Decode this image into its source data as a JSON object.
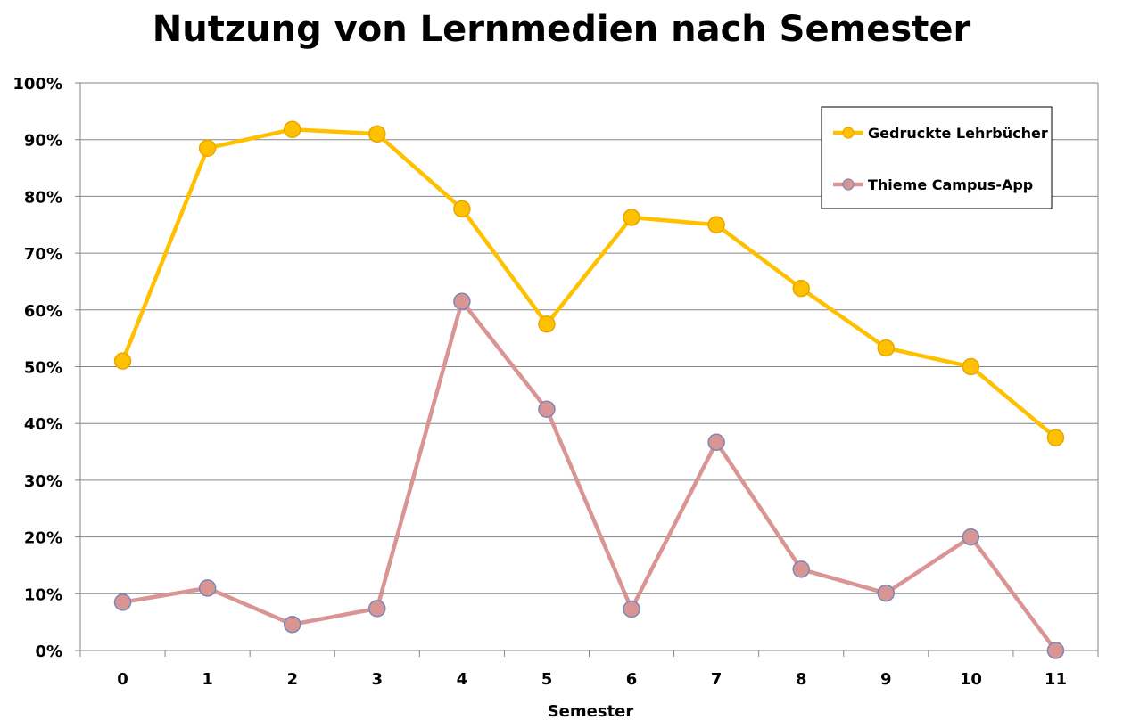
{
  "chart_data": {
    "type": "line",
    "title": "Nutzung von Lernmedien nach Semester",
    "xlabel": "Semester",
    "ylabel": "",
    "x": [
      0,
      1,
      2,
      3,
      4,
      5,
      6,
      7,
      8,
      9,
      10,
      11
    ],
    "x_tick_labels": [
      "0",
      "1",
      "2",
      "3",
      "4",
      "5",
      "6",
      "7",
      "8",
      "9",
      "10",
      "11"
    ],
    "ylim": [
      0,
      100
    ],
    "y_ticks": [
      0,
      10,
      20,
      30,
      40,
      50,
      60,
      70,
      80,
      90,
      100
    ],
    "y_tick_labels": [
      "0%",
      "10%",
      "20%",
      "30%",
      "40%",
      "50%",
      "60%",
      "70%",
      "80%",
      "90%",
      "100%"
    ],
    "grid": "horizontal",
    "legend_position": "top-right",
    "series": [
      {
        "name": "Gedruckte Lehrbücher",
        "color": "#FFC000",
        "values": [
          51,
          88.5,
          91.8,
          91,
          77.8,
          57.5,
          76.3,
          75,
          63.8,
          53.3,
          50,
          37.5
        ]
      },
      {
        "name": "Thieme Campus-App",
        "color": "#D99594",
        "values": [
          8.5,
          11,
          4.6,
          7.4,
          61.5,
          42.5,
          7.3,
          36.7,
          14.3,
          10.1,
          20,
          0
        ]
      }
    ]
  }
}
